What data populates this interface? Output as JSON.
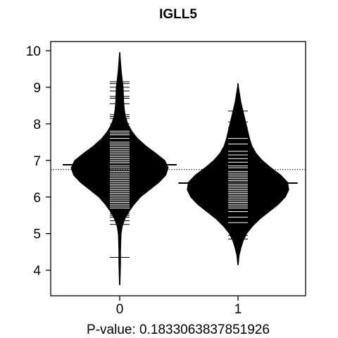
{
  "chart_data": {
    "type": "beanplot",
    "title": "IGLL5",
    "xlabel": "P-value: 0.1833063837851926",
    "ylabel": "",
    "x_tick_labels": [
      "0",
      "1"
    ],
    "y_ticks": [
      4,
      5,
      6,
      7,
      8,
      9,
      10
    ],
    "ylim": [
      3.3,
      10.25
    ],
    "grid": false,
    "overall_mean": 6.75,
    "groups": [
      {
        "name": "0",
        "mean": 6.88,
        "min": 3.6,
        "max": 9.95,
        "density": [
          [
            3.6,
            0.005
          ],
          [
            3.9,
            0.01
          ],
          [
            4.2,
            0.015
          ],
          [
            4.5,
            0.015
          ],
          [
            4.8,
            0.02
          ],
          [
            5.0,
            0.025
          ],
          [
            5.2,
            0.045
          ],
          [
            5.4,
            0.09
          ],
          [
            5.6,
            0.16
          ],
          [
            5.8,
            0.25
          ],
          [
            6.0,
            0.36
          ],
          [
            6.2,
            0.52
          ],
          [
            6.4,
            0.68
          ],
          [
            6.6,
            0.8
          ],
          [
            6.8,
            0.84
          ],
          [
            7.0,
            0.78
          ],
          [
            7.2,
            0.62
          ],
          [
            7.4,
            0.45
          ],
          [
            7.6,
            0.31
          ],
          [
            7.8,
            0.21
          ],
          [
            8.0,
            0.14
          ],
          [
            8.2,
            0.1
          ],
          [
            8.4,
            0.08
          ],
          [
            8.6,
            0.07
          ],
          [
            8.8,
            0.065
          ],
          [
            9.0,
            0.06
          ],
          [
            9.2,
            0.045
          ],
          [
            9.4,
            0.03
          ],
          [
            9.6,
            0.02
          ],
          [
            9.8,
            0.01
          ],
          [
            9.95,
            0.004
          ]
        ],
        "observations": [
          4.35,
          5.25,
          5.35,
          5.45,
          5.5,
          5.55,
          5.6,
          5.65,
          5.7,
          5.75,
          5.8,
          5.85,
          5.9,
          5.95,
          6.0,
          6.05,
          6.1,
          6.15,
          6.2,
          6.25,
          6.3,
          6.35,
          6.4,
          6.45,
          6.5,
          6.55,
          6.6,
          6.65,
          6.7,
          6.75,
          6.8,
          6.85,
          6.9,
          6.95,
          7.0,
          7.05,
          7.1,
          7.15,
          7.2,
          7.25,
          7.3,
          7.35,
          7.4,
          7.45,
          7.5,
          7.6,
          7.7,
          7.75,
          7.8,
          7.9,
          8.0,
          8.15,
          8.2,
          8.25,
          8.55,
          8.7,
          8.75,
          8.9,
          9.0,
          9.1,
          9.15
        ]
      },
      {
        "name": "1",
        "mean": 6.38,
        "min": 4.15,
        "max": 9.1,
        "density": [
          [
            4.15,
            0.005
          ],
          [
            4.4,
            0.02
          ],
          [
            4.6,
            0.05
          ],
          [
            4.8,
            0.09
          ],
          [
            5.0,
            0.15
          ],
          [
            5.2,
            0.25
          ],
          [
            5.4,
            0.38
          ],
          [
            5.6,
            0.54
          ],
          [
            5.8,
            0.7
          ],
          [
            6.0,
            0.82
          ],
          [
            6.2,
            0.88
          ],
          [
            6.4,
            0.86
          ],
          [
            6.6,
            0.74
          ],
          [
            6.8,
            0.57
          ],
          [
            7.0,
            0.42
          ],
          [
            7.2,
            0.31
          ],
          [
            7.4,
            0.24
          ],
          [
            7.6,
            0.2
          ],
          [
            7.8,
            0.17
          ],
          [
            8.0,
            0.14
          ],
          [
            8.2,
            0.11
          ],
          [
            8.4,
            0.08
          ],
          [
            8.6,
            0.05
          ],
          [
            8.8,
            0.03
          ],
          [
            9.0,
            0.01
          ],
          [
            9.1,
            0.004
          ]
        ],
        "observations": [
          4.85,
          4.95,
          5.05,
          5.3,
          5.45,
          5.6,
          5.7,
          5.75,
          5.8,
          5.85,
          5.9,
          5.95,
          6.0,
          6.05,
          6.1,
          6.15,
          6.2,
          6.25,
          6.3,
          6.35,
          6.4,
          6.45,
          6.5,
          6.55,
          6.6,
          6.65,
          6.7,
          6.8,
          6.85,
          6.95,
          7.05,
          7.15,
          7.25,
          7.45,
          7.6,
          7.75,
          7.9,
          8.05,
          8.35
        ]
      }
    ]
  }
}
